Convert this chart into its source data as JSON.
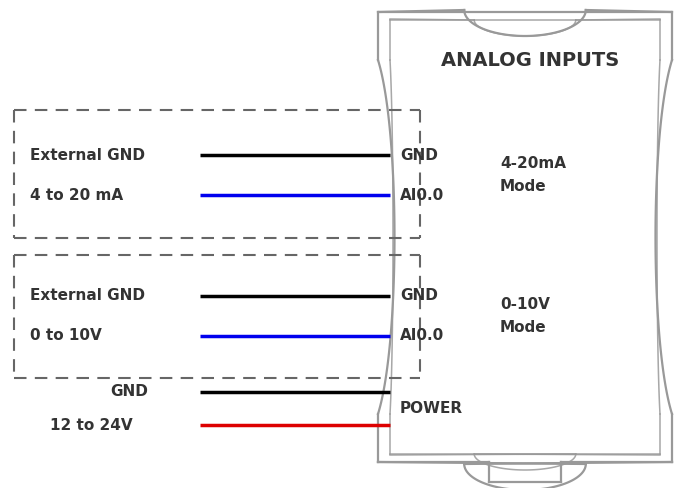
{
  "title": "ANALOG INPUTS",
  "bg_color": "#ffffff",
  "wire_colors": {
    "black": "#000000",
    "blue": "#0000ee",
    "red": "#dd0000"
  },
  "sections": [
    {
      "label_left_top": "External GND",
      "label_left_bot": "4 to 20 mA",
      "label_right_top": "GND",
      "label_right_bot": "AI0.0",
      "mode_label": "4-20mA\nMode",
      "wire_top_color": "#000000",
      "wire_bot_color": "#0000ee"
    },
    {
      "label_left_top": "External GND",
      "label_left_bot": "0 to 10V",
      "label_right_top": "GND",
      "label_right_bot": "AI0.0",
      "mode_label": "0-10V\nMode",
      "wire_top_color": "#000000",
      "wire_bot_color": "#0000ee"
    }
  ],
  "power_section": {
    "label_left_top": "GND",
    "label_left_bot": "12 to 24V",
    "label_right": "POWER",
    "wire_top_color": "#000000",
    "wire_bot_color": "#dd0000"
  },
  "plc_color": "#999999",
  "dash_color": "#666666",
  "text_color": "#333333"
}
